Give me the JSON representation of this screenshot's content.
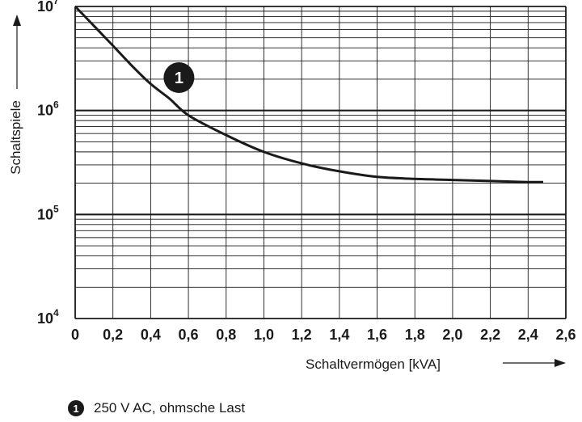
{
  "chart_data": {
    "type": "line",
    "x_tick_labels": [
      "0",
      "0,2",
      "0,4",
      "0,6",
      "0,8",
      "1,0",
      "1,2",
      "1,4",
      "1,6",
      "1,8",
      "2,0",
      "2,2",
      "2,4",
      "2,6"
    ],
    "y_tick_labels": [
      {
        "base": "10",
        "exponent": "4"
      },
      {
        "base": "10",
        "exponent": "5"
      },
      {
        "base": "10",
        "exponent": "6"
      },
      {
        "base": "10",
        "exponent": "7"
      }
    ],
    "xlabel": "Schaltvermögen [kVA]",
    "ylabel": "Schaltspiele",
    "xlim": [
      0,
      2.6
    ],
    "ylim": [
      10000,
      10000000
    ],
    "y_scale": "log",
    "grid": true,
    "series": [
      {
        "name": "250 V AC, ohmsche Last",
        "marker_label": "1",
        "x": [
          0,
          0.1,
          0.2,
          0.3,
          0.4,
          0.5,
          0.6,
          0.8,
          1.0,
          1.2,
          1.4,
          1.6,
          1.8,
          2.0,
          2.2,
          2.4,
          2.48
        ],
        "y": [
          10000000,
          6500000,
          4200000,
          2700000,
          1800000,
          1300000,
          900000,
          580000,
          400000,
          310000,
          260000,
          230000,
          220000,
          215000,
          210000,
          205000,
          205000
        ]
      }
    ]
  },
  "legend": {
    "marker": "1",
    "label": "250 V AC, ohmsche Last"
  }
}
